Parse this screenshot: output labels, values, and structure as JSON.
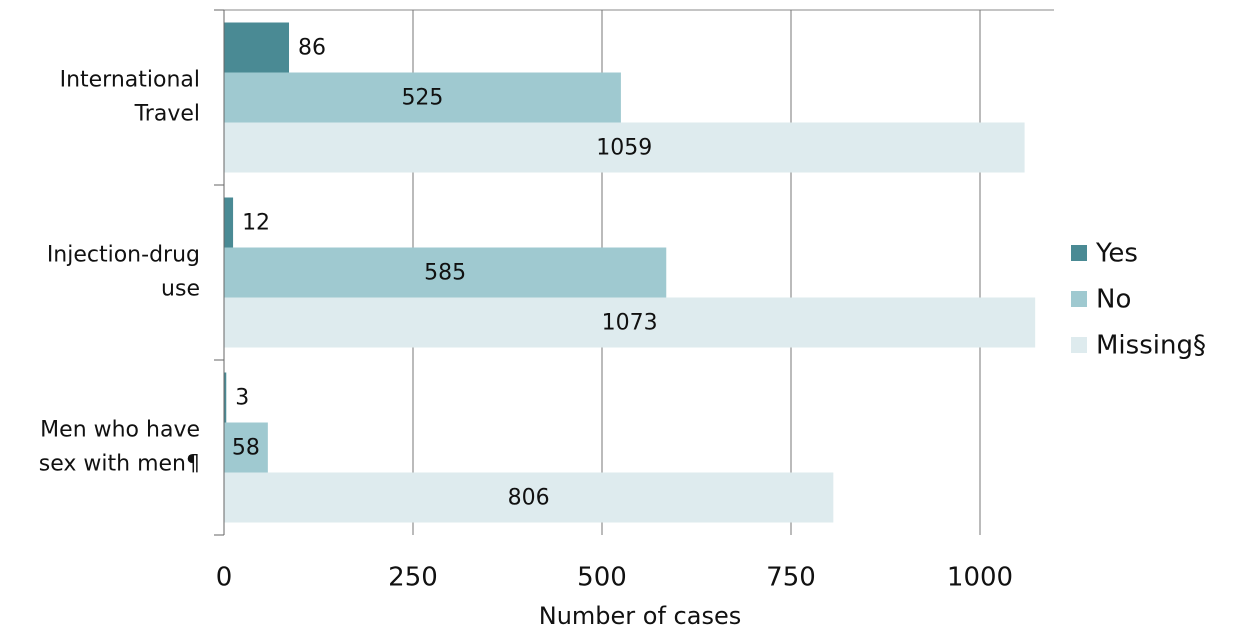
{
  "chart_data": {
    "type": "bar",
    "orientation": "horizontal",
    "categories": [
      "International Travel",
      "Injection-drug use",
      "Men who have sex with men¶"
    ],
    "series": [
      {
        "name": "Yes",
        "color": "#4a8a94",
        "values": [
          86,
          12,
          3
        ]
      },
      {
        "name": "No",
        "color": "#9fc9d0",
        "values": [
          525,
          585,
          58
        ]
      },
      {
        "name": "Missing§",
        "color": "#deebee",
        "values": [
          1059,
          1073,
          806
        ]
      }
    ],
    "xlabel": "Number of cases",
    "xlim": [
      0,
      1100
    ],
    "xticks": [
      0,
      250,
      500,
      750,
      1000
    ],
    "grid": true,
    "legend": "right"
  }
}
